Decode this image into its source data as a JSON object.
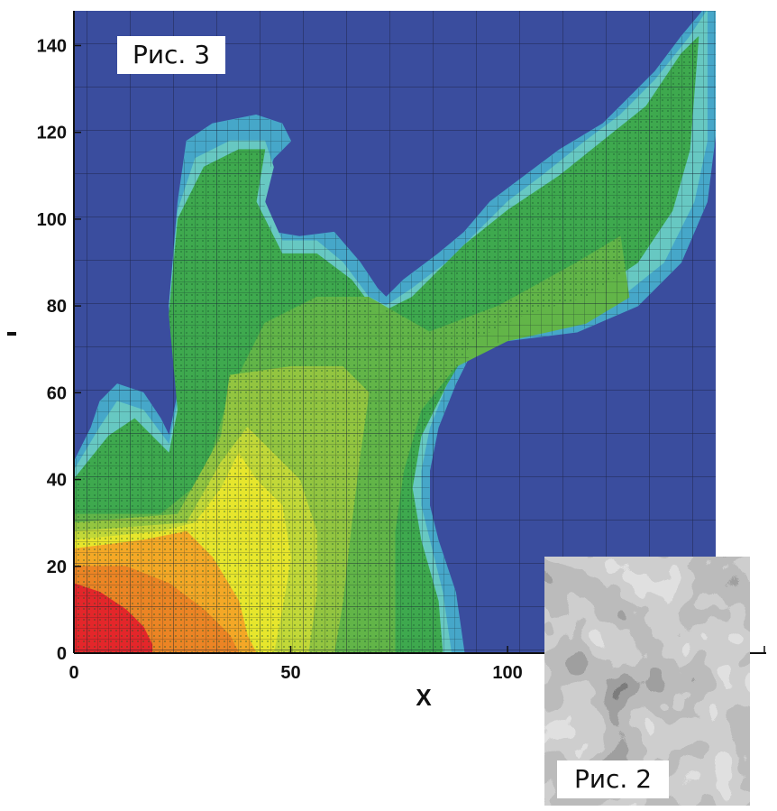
{
  "chart_data": [
    {
      "type": "heatmap",
      "caption": "Рис. 3",
      "xlabel": "X",
      "ylabel": "",
      "xlim": [
        0,
        148
      ],
      "ylim": [
        0,
        148
      ],
      "x_ticks": [
        0,
        50,
        100
      ],
      "y_ticks": [
        0,
        20,
        40,
        60,
        80,
        100,
        120,
        140
      ],
      "grid": "adaptive mesh refinement overlay",
      "colors": {
        "background": "#3a4d9e",
        "levels": [
          "#46a7c9",
          "#67c8c2",
          "#3ea94e",
          "#62b548",
          "#93c540",
          "#c2d838",
          "#e7e62c",
          "#f4a826",
          "#ec8424",
          "#e4262a"
        ]
      },
      "regions": [
        {
          "level": 1,
          "outline": [
            [
              0,
              44
            ],
            [
              4,
              52
            ],
            [
              6,
              58
            ],
            [
              10,
              62
            ],
            [
              16,
              60
            ],
            [
              20,
              54
            ],
            [
              22,
              50
            ],
            [
              24,
              60
            ],
            [
              22,
              80
            ],
            [
              24,
              104
            ],
            [
              26,
              118
            ],
            [
              32,
              122
            ],
            [
              42,
              124
            ],
            [
              48,
              122
            ],
            [
              50,
              118
            ],
            [
              46,
              114
            ],
            [
              44,
              108
            ],
            [
              44,
              102
            ],
            [
              46,
              97
            ],
            [
              52,
              96
            ],
            [
              60,
              97
            ],
            [
              66,
              90
            ],
            [
              70,
              84
            ],
            [
              72,
              82
            ],
            [
              76,
              86
            ],
            [
              84,
              92
            ],
            [
              90,
              97
            ],
            [
              96,
              104
            ],
            [
              104,
              110
            ],
            [
              112,
              116
            ],
            [
              122,
              122
            ],
            [
              128,
              128
            ],
            [
              134,
              134
            ],
            [
              140,
              142
            ],
            [
              145,
              148
            ],
            [
              148,
              148
            ],
            [
              148,
              120
            ],
            [
              146,
              104
            ],
            [
              140,
              90
            ],
            [
              130,
              80
            ],
            [
              116,
              74
            ],
            [
              100,
              72
            ],
            [
              92,
              70
            ],
            [
              88,
              62
            ],
            [
              84,
              52
            ],
            [
              82,
              42
            ],
            [
              82,
              34
            ],
            [
              84,
              26
            ],
            [
              88,
              14
            ],
            [
              90,
              0
            ],
            [
              0,
              0
            ]
          ]
        },
        {
          "level": 2,
          "outline": [
            [
              0,
              42
            ],
            [
              6,
              52
            ],
            [
              10,
              58
            ],
            [
              16,
              56
            ],
            [
              22,
              48
            ],
            [
              24,
              58
            ],
            [
              22,
              80
            ],
            [
              24,
              102
            ],
            [
              28,
              114
            ],
            [
              36,
              118
            ],
            [
              44,
              118
            ],
            [
              46,
              112
            ],
            [
              44,
              104
            ],
            [
              48,
              95
            ],
            [
              56,
              95
            ],
            [
              62,
              90
            ],
            [
              68,
              82
            ],
            [
              72,
              80
            ],
            [
              78,
              84
            ],
            [
              86,
              90
            ],
            [
              92,
              96
            ],
            [
              100,
              104
            ],
            [
              108,
              110
            ],
            [
              118,
              118
            ],
            [
              126,
              124
            ],
            [
              134,
              132
            ],
            [
              142,
              142
            ],
            [
              146,
              148
            ],
            [
              146,
              118
            ],
            [
              143,
              104
            ],
            [
              136,
              90
            ],
            [
              126,
              82
            ],
            [
              112,
              76
            ],
            [
              98,
              74
            ],
            [
              90,
              70
            ],
            [
              86,
              62
            ],
            [
              82,
              52
            ],
            [
              80,
              42
            ],
            [
              80,
              34
            ],
            [
              82,
              26
            ],
            [
              85,
              14
            ],
            [
              87,
              0
            ],
            [
              0,
              0
            ]
          ]
        },
        {
          "level": 3,
          "outline": [
            [
              0,
              40
            ],
            [
              8,
              50
            ],
            [
              14,
              54
            ],
            [
              22,
              46
            ],
            [
              24,
              56
            ],
            [
              22,
              78
            ],
            [
              24,
              100
            ],
            [
              30,
              112
            ],
            [
              38,
              116
            ],
            [
              44,
              116
            ],
            [
              42,
              104
            ],
            [
              48,
              92
            ],
            [
              56,
              92
            ],
            [
              64,
              86
            ],
            [
              70,
              78
            ],
            [
              78,
              82
            ],
            [
              90,
              94
            ],
            [
              100,
              102
            ],
            [
              112,
              110
            ],
            [
              122,
              118
            ],
            [
              132,
              126
            ],
            [
              140,
              138
            ],
            [
              144,
              142
            ],
            [
              142,
              116
            ],
            [
              138,
              102
            ],
            [
              130,
              90
            ],
            [
              118,
              82
            ],
            [
              104,
              78
            ],
            [
              92,
              72
            ],
            [
              86,
              62
            ],
            [
              80,
              50
            ],
            [
              78,
              38
            ],
            [
              80,
              26
            ],
            [
              84,
              12
            ],
            [
              85,
              0
            ],
            [
              0,
              0
            ]
          ]
        },
        {
          "level": 4,
          "outline": [
            [
              0,
              32
            ],
            [
              20,
              32
            ],
            [
              30,
              40
            ],
            [
              36,
              60
            ],
            [
              44,
              76
            ],
            [
              56,
              82
            ],
            [
              68,
              82
            ],
            [
              82,
              74
            ],
            [
              98,
              80
            ],
            [
              116,
              90
            ],
            [
              126,
              96
            ],
            [
              128,
              82
            ],
            [
              118,
              76
            ],
            [
              100,
              72
            ],
            [
              88,
              66
            ],
            [
              80,
              56
            ],
            [
              76,
              42
            ],
            [
              74,
              28
            ],
            [
              74,
              0
            ],
            [
              0,
              0
            ]
          ]
        },
        {
          "level": 5,
          "outline": [
            [
              0,
              30
            ],
            [
              24,
              32
            ],
            [
              34,
              50
            ],
            [
              36,
              64
            ],
            [
              50,
              66
            ],
            [
              62,
              66
            ],
            [
              68,
              60
            ],
            [
              66,
              46
            ],
            [
              64,
              30
            ],
            [
              62,
              12
            ],
            [
              60,
              0
            ],
            [
              0,
              0
            ]
          ]
        },
        {
          "level": 6,
          "outline": [
            [
              0,
              28
            ],
            [
              26,
              30
            ],
            [
              34,
              44
            ],
            [
              40,
              52
            ],
            [
              46,
              46
            ],
            [
              52,
              40
            ],
            [
              56,
              28
            ],
            [
              56,
              14
            ],
            [
              54,
              0
            ],
            [
              0,
              0
            ]
          ]
        },
        {
          "level": 7,
          "outline": [
            [
              0,
              26
            ],
            [
              20,
              28
            ],
            [
              28,
              30
            ],
            [
              34,
              38
            ],
            [
              38,
              46
            ],
            [
              42,
              40
            ],
            [
              48,
              34
            ],
            [
              50,
              22
            ],
            [
              48,
              10
            ],
            [
              46,
              0
            ],
            [
              0,
              0
            ]
          ]
        },
        {
          "level": 8,
          "outline": [
            [
              0,
              24
            ],
            [
              16,
              26
            ],
            [
              26,
              28
            ],
            [
              32,
              22
            ],
            [
              38,
              12
            ],
            [
              40,
              4
            ],
            [
              42,
              0
            ],
            [
              0,
              0
            ]
          ]
        },
        {
          "level": 9,
          "outline": [
            [
              0,
              20
            ],
            [
              12,
              20
            ],
            [
              22,
              16
            ],
            [
              30,
              10
            ],
            [
              36,
              4
            ],
            [
              38,
              0
            ],
            [
              0,
              0
            ]
          ]
        },
        {
          "level": 10,
          "outline": [
            [
              0,
              16
            ],
            [
              6,
              14
            ],
            [
              12,
              10
            ],
            [
              16,
              6
            ],
            [
              18,
              2
            ],
            [
              18,
              0
            ],
            [
              0,
              0
            ]
          ]
        }
      ]
    },
    {
      "type": "heatmap",
      "caption": "Рис. 2",
      "colormap": "grayscale"
    }
  ]
}
